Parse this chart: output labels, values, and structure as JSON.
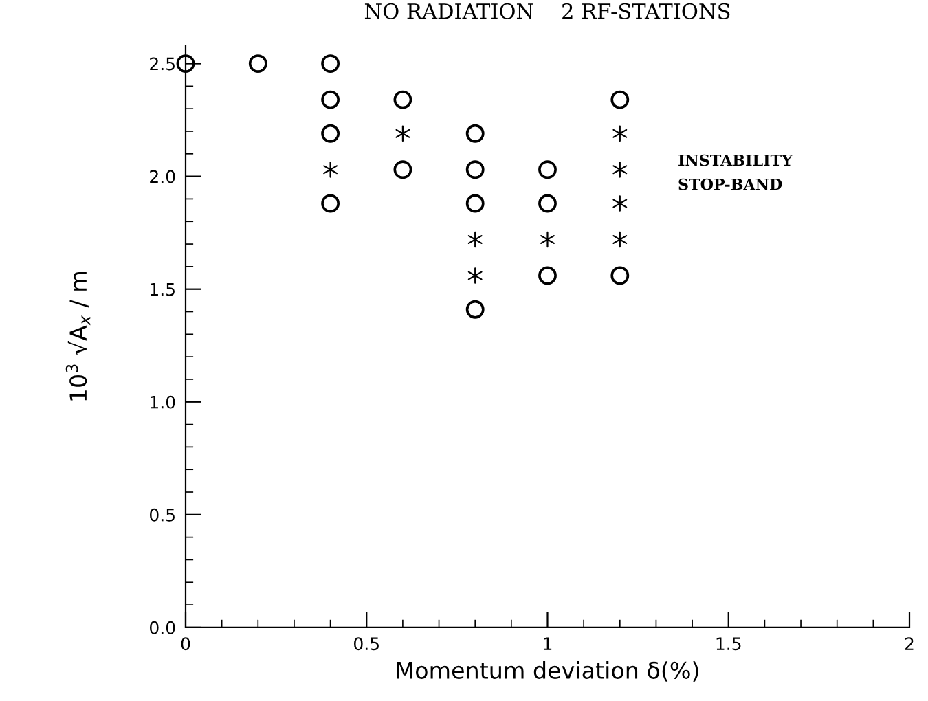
{
  "chart_data": {
    "type": "scatter",
    "title": "NO RADIATION    2 RF-STATIONS",
    "xlabel": "Momentum deviation δ(%)",
    "ylabel": "10$^{3}$ √A$_{x}$ / m",
    "series": [
      {
        "color": "#000000",
        "marker": "circle",
        "x": [
          0,
          0.2,
          0.4,
          0.4,
          0.4,
          0.4,
          0.6,
          0.6,
          0.8,
          0.8,
          0.8,
          0.8,
          1.0,
          1.0,
          1.0,
          1.2,
          1.2
        ],
        "values": [
          2.5,
          2.5,
          2.5,
          2.34,
          2.19,
          1.88,
          2.34,
          2.03,
          2.19,
          2.03,
          1.88,
          1.41,
          2.03,
          1.88,
          1.56,
          2.34,
          1.56
        ]
      },
      {
        "color": "#000000",
        "marker": "cross",
        "x": [
          0.4,
          0.6,
          0.8,
          0.8,
          1.0,
          1.2,
          1.2,
          1.2,
          1.2
        ],
        "values": [
          2.03,
          2.19,
          1.72,
          1.56,
          1.72,
          2.19,
          2.03,
          1.88,
          1.72
        ]
      }
    ],
    "annotations": [
      "INSTABILITY\nSTOP-BAND"
    ],
    "xlim": [
      0,
      2
    ],
    "ylim": [
      0,
      2.58
    ],
    "xticks": [
      0,
      0.5,
      1,
      1.5,
      2
    ],
    "yticks": [
      {
        "value": 0,
        "label": "0.0"
      },
      0.5,
      {
        "value": 1,
        "label": "1.0"
      },
      1.5,
      {
        "value": 2,
        "label": "2.0"
      },
      2.5
    ],
    "grid": false,
    "legend": false
  }
}
